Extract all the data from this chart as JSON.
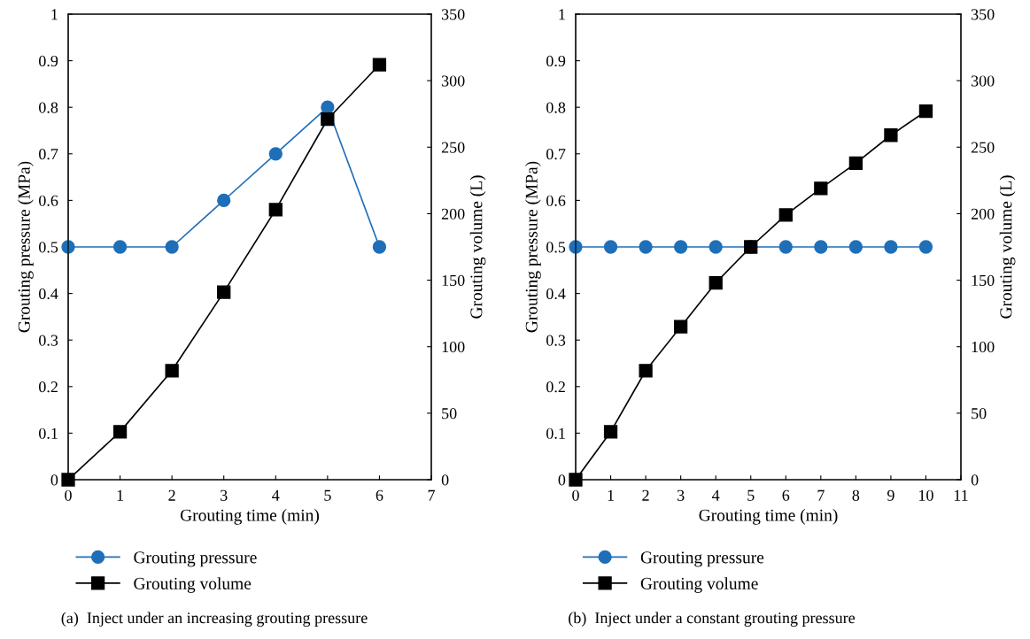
{
  "chart_data": [
    {
      "type": "line",
      "xlabel": "Grouting time (min)",
      "ylabel": "Grouting pressure (MPa)",
      "y2label": "Grouting volume (L)",
      "xlim": [
        0,
        7
      ],
      "xticks": [
        0,
        1,
        2,
        3,
        4,
        5,
        6,
        7
      ],
      "ylim": [
        0,
        1
      ],
      "yticks": [
        0,
        0.1,
        0.2,
        0.3,
        0.4,
        0.5,
        0.6,
        0.7,
        0.8,
        0.9,
        1
      ],
      "y2lim": [
        0,
        350
      ],
      "y2ticks": [
        0,
        50,
        100,
        150,
        200,
        250,
        300,
        350
      ],
      "legend": "bottom",
      "annotations": [
        "(a)  Inject under an increasing grouting pressure"
      ],
      "series": [
        {
          "name": "Grouting pressure",
          "color": "#1f6fb8",
          "marker": "circle",
          "x": [
            0,
            1,
            2,
            3,
            4,
            5,
            6
          ],
          "values": [
            0.5,
            0.5,
            0.5,
            0.6,
            0.7,
            0.8,
            0.5
          ]
        },
        {
          "name": "Grouting volume",
          "color": "#000000",
          "marker": "square",
          "axis": "y2",
          "x": [
            0,
            1,
            2,
            3,
            4,
            5,
            6
          ],
          "values": [
            0,
            36,
            82,
            141,
            203,
            271,
            312
          ]
        }
      ]
    },
    {
      "type": "line",
      "xlabel": "Grouting time (min)",
      "ylabel": "Grouting pressure (MPa)",
      "y2label": "Grouting volume (L)",
      "xlim": [
        0,
        11
      ],
      "xticks": [
        0,
        1,
        2,
        3,
        4,
        5,
        6,
        7,
        8,
        9,
        10,
        11
      ],
      "ylim": [
        0,
        1
      ],
      "yticks": [
        0,
        0.1,
        0.2,
        0.3,
        0.4,
        0.5,
        0.6,
        0.7,
        0.8,
        0.9,
        1
      ],
      "y2lim": [
        0,
        350
      ],
      "y2ticks": [
        0,
        50,
        100,
        150,
        200,
        250,
        300,
        350
      ],
      "legend": "bottom",
      "annotations": [
        "(b)  Inject under a constant grouting pressure"
      ],
      "series": [
        {
          "name": "Grouting pressure",
          "color": "#1f6fb8",
          "marker": "circle",
          "x": [
            0,
            1,
            2,
            3,
            4,
            5,
            6,
            7,
            8,
            9,
            10
          ],
          "values": [
            0.5,
            0.5,
            0.5,
            0.5,
            0.5,
            0.5,
            0.5,
            0.5,
            0.5,
            0.5,
            0.5
          ]
        },
        {
          "name": "Grouting volume",
          "color": "#000000",
          "marker": "square",
          "axis": "y2",
          "x": [
            0,
            1,
            2,
            3,
            4,
            5,
            6,
            7,
            8,
            9,
            10
          ],
          "values": [
            0,
            36,
            82,
            115,
            148,
            175,
            199,
            219,
            238,
            259,
            277
          ]
        }
      ]
    }
  ]
}
